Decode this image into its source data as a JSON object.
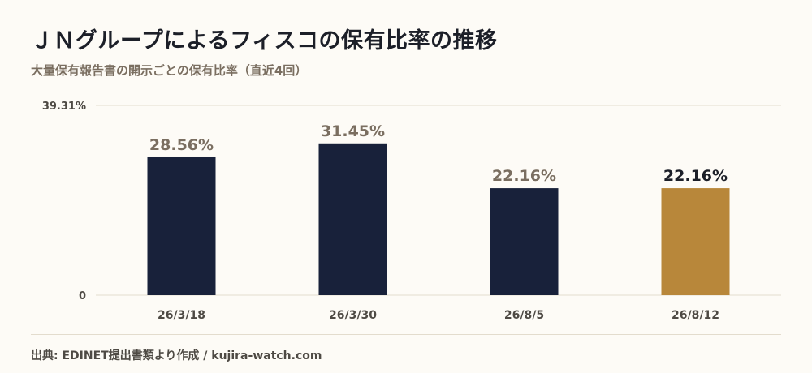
{
  "header": {
    "title": "ＪＮグループによるフィスコの保有比率の推移",
    "subtitle": "大量保有報告書の開示ごとの保有比率（直近4回）"
  },
  "footer": {
    "source": "出典: EDINET提出書類より作成 / kujira-watch.com"
  },
  "chart_data": {
    "type": "bar",
    "categories": [
      "26/3/18",
      "26/3/30",
      "26/8/5",
      "26/8/12"
    ],
    "values": [
      28.56,
      31.45,
      22.16,
      22.16
    ],
    "value_labels": [
      "28.56%",
      "31.45%",
      "22.16%",
      "22.16%"
    ],
    "ylim": [
      0,
      39.31
    ],
    "y_tick_labels": [
      "0",
      "39.31%"
    ],
    "grid": true,
    "colors": {
      "bar": "#18213a",
      "highlight_bar": "#b8873a",
      "value_label": "#7a6e60",
      "highlight_value_label": "#1c1f28",
      "grid": "#e3dccd",
      "axis_label": "#4e4a44"
    },
    "highlight_index": 3
  }
}
